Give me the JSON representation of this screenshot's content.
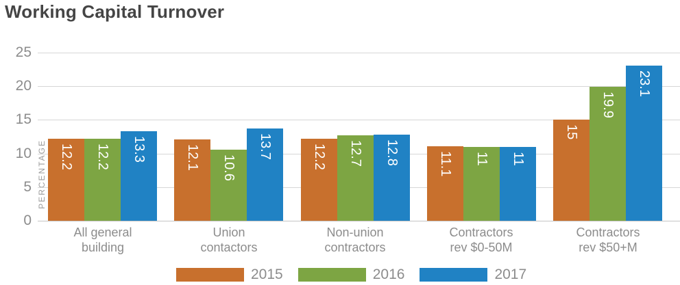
{
  "title": "Working Capital Turnover",
  "chart_data": {
    "type": "bar",
    "title": "Working Capital Turnover",
    "xlabel": "",
    "ylabel": "PERCENTAGE",
    "ylim": [
      0,
      25
    ],
    "yticks": [
      0,
      5,
      10,
      15,
      20,
      25
    ],
    "grid": true,
    "legend_position": "bottom",
    "value_label_color": "#ffffff",
    "categories": [
      "All general\nbuilding",
      "Union\ncontactors",
      "Non-union\ncontractors",
      "Contractors\nrev $0-50M",
      "Contractors\nrev $50+M"
    ],
    "series": [
      {
        "name": "2015",
        "color": "#c8702d",
        "values": [
          12.2,
          12.1,
          12.2,
          11.1,
          15
        ],
        "labels": [
          "12.2",
          "12.1",
          "12.2",
          "11.1",
          "15"
        ]
      },
      {
        "name": "2016",
        "color": "#7da543",
        "values": [
          12.2,
          10.6,
          12.7,
          11,
          19.9
        ],
        "labels": [
          "12.2",
          "10.6",
          "12.7",
          "11",
          "19.9"
        ]
      },
      {
        "name": "2017",
        "color": "#2082c4",
        "values": [
          13.3,
          13.7,
          12.8,
          11,
          23.1
        ],
        "labels": [
          "13.3",
          "13.7",
          "12.8",
          "11",
          "23.1"
        ]
      }
    ]
  }
}
